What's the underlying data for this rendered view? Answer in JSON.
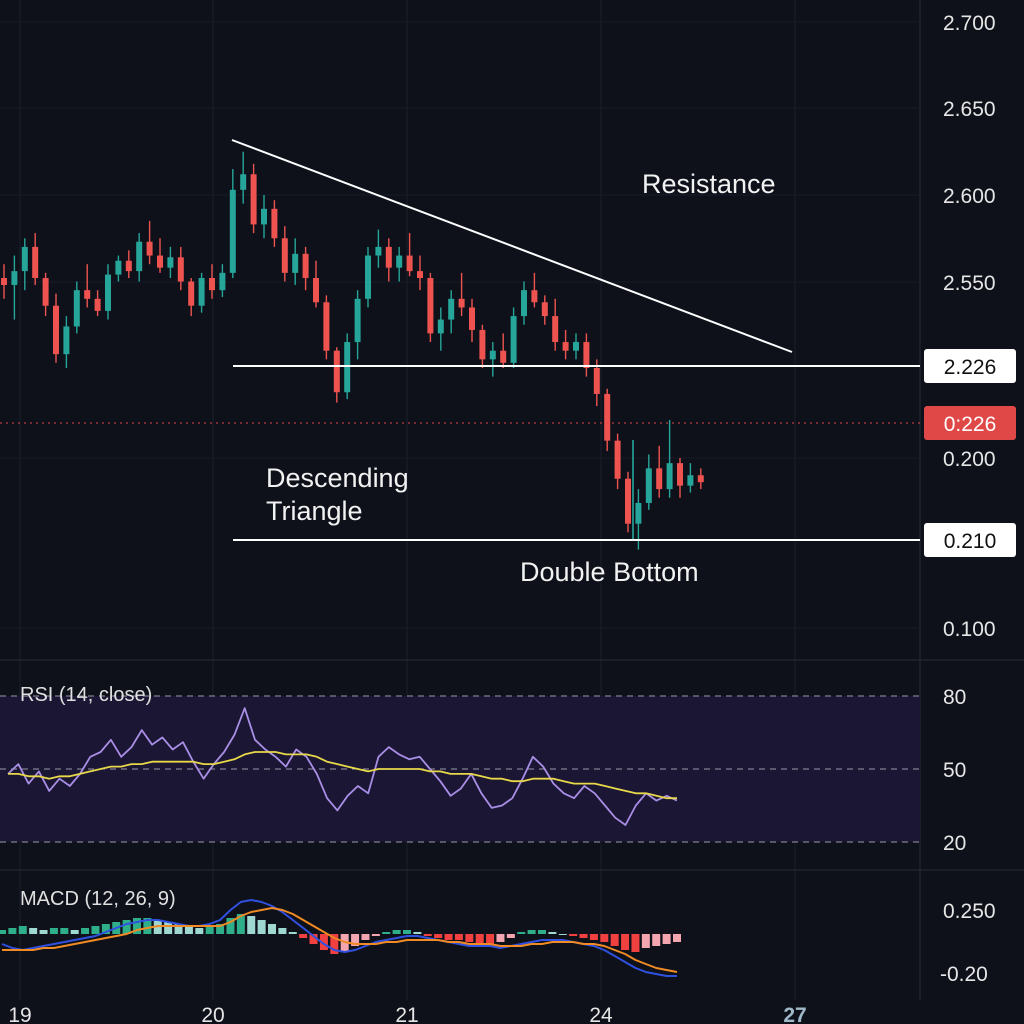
{
  "chart_data": [
    {
      "type": "candlestick",
      "panel": "price",
      "price_axis_ticks": [
        "2.700",
        "2.650",
        "2.600",
        "2.550",
        "0.200",
        "0.100"
      ],
      "price_tags": [
        {
          "label": "2.226",
          "style": "light"
        },
        {
          "label": "0:226",
          "style": "current"
        },
        {
          "label": "0.210",
          "style": "light"
        }
      ],
      "annotations": {
        "resistance": "Resistance",
        "triangle": [
          "Descending",
          "Triangle"
        ],
        "double_bottom": "Double Bottom"
      },
      "x_tick_labels": [
        "19",
        "20",
        "21",
        "24",
        "27"
      ],
      "candles_ohlc": [
        [
          2.552,
          2.56,
          2.54,
          2.548
        ],
        [
          2.548,
          2.565,
          2.528,
          2.556
        ],
        [
          2.556,
          2.575,
          2.545,
          2.57
        ],
        [
          2.57,
          2.578,
          2.548,
          2.552
        ],
        [
          2.552,
          2.555,
          2.53,
          2.536
        ],
        [
          2.536,
          2.543,
          2.503,
          2.508
        ],
        [
          2.508,
          2.53,
          2.5,
          2.524
        ],
        [
          2.524,
          2.55,
          2.52,
          2.545
        ],
        [
          2.545,
          2.56,
          2.535,
          2.54
        ],
        [
          2.54,
          2.545,
          2.53,
          2.533
        ],
        [
          2.533,
          2.56,
          2.528,
          2.554
        ],
        [
          2.554,
          2.565,
          2.55,
          2.562
        ],
        [
          2.562,
          2.568,
          2.552,
          2.556
        ],
        [
          2.556,
          2.578,
          2.55,
          2.573
        ],
        [
          2.573,
          2.585,
          2.56,
          2.565
        ],
        [
          2.565,
          2.575,
          2.555,
          2.558
        ],
        [
          2.558,
          2.57,
          2.552,
          2.564
        ],
        [
          2.564,
          2.57,
          2.545,
          2.55
        ],
        [
          2.55,
          2.552,
          2.53,
          2.536
        ],
        [
          2.536,
          2.555,
          2.532,
          2.552
        ],
        [
          2.552,
          2.56,
          2.54,
          2.545
        ],
        [
          2.545,
          2.56,
          2.541,
          2.555
        ],
        [
          2.555,
          2.615,
          2.552,
          2.603
        ],
        [
          2.603,
          2.625,
          2.595,
          2.612
        ],
        [
          2.612,
          2.618,
          2.578,
          2.583
        ],
        [
          2.583,
          2.6,
          2.575,
          2.592
        ],
        [
          2.592,
          2.597,
          2.57,
          2.575
        ],
        [
          2.575,
          2.582,
          2.55,
          2.555
        ],
        [
          2.555,
          2.575,
          2.548,
          2.566
        ],
        [
          2.566,
          2.57,
          2.545,
          2.552
        ],
        [
          2.552,
          2.562,
          2.535,
          2.538
        ],
        [
          2.538,
          2.542,
          2.505,
          2.51
        ],
        [
          2.51,
          2.512,
          2.48,
          2.486
        ],
        [
          2.486,
          2.52,
          2.482,
          2.515
        ],
        [
          2.515,
          2.545,
          2.505,
          2.54
        ],
        [
          2.54,
          2.57,
          2.535,
          2.565
        ],
        [
          2.565,
          2.58,
          2.558,
          2.57
        ],
        [
          2.57,
          2.575,
          2.55,
          2.558
        ],
        [
          2.558,
          2.57,
          2.55,
          2.565
        ],
        [
          2.565,
          2.578,
          2.553,
          2.556
        ],
        [
          2.556,
          2.565,
          2.545,
          2.552
        ],
        [
          2.552,
          2.555,
          2.515,
          2.52
        ],
        [
          2.52,
          2.535,
          2.51,
          2.528
        ],
        [
          2.528,
          2.545,
          2.52,
          2.54
        ],
        [
          2.54,
          2.555,
          2.53,
          2.535
        ],
        [
          2.535,
          2.54,
          2.515,
          2.522
        ],
        [
          2.522,
          2.525,
          2.5,
          2.505
        ],
        [
          2.505,
          2.515,
          2.495,
          2.51
        ],
        [
          2.51,
          2.52,
          2.5,
          2.503
        ],
        [
          2.503,
          2.535,
          2.5,
          2.53
        ],
        [
          2.53,
          2.55,
          2.525,
          2.545
        ],
        [
          2.545,
          2.555,
          2.535,
          2.538
        ],
        [
          2.538,
          2.542,
          2.525,
          2.53
        ],
        [
          2.53,
          2.54,
          2.51,
          2.515
        ],
        [
          2.515,
          2.522,
          2.505,
          2.51
        ],
        [
          2.51,
          2.52,
          2.505,
          2.515
        ],
        [
          2.515,
          2.52,
          2.495,
          2.5
        ],
        [
          2.5,
          2.505,
          2.478,
          2.485
        ],
        [
          2.485,
          2.488,
          2.452,
          2.458
        ],
        [
          2.458,
          2.462,
          2.43,
          2.436
        ],
        [
          2.436,
          2.44,
          2.405,
          2.41
        ],
        [
          2.41,
          2.43,
          2.395,
          2.422
        ],
        [
          2.422,
          2.45,
          2.418,
          2.442
        ],
        [
          2.442,
          2.455,
          2.425,
          2.43
        ],
        [
          2.43,
          2.47,
          2.425,
          2.445
        ],
        [
          2.445,
          2.448,
          2.425,
          2.432
        ],
        [
          2.432,
          2.445,
          2.428,
          2.438
        ],
        [
          2.438,
          2.442,
          2.43,
          2.434
        ]
      ]
    },
    {
      "type": "line",
      "panel": "rsi",
      "title": "RSI (14, close)",
      "axis_ticks": [
        "80",
        "50",
        "20"
      ],
      "levels": [
        80,
        50,
        20
      ],
      "series": [
        {
          "values": [
            48,
            52,
            44,
            49,
            41,
            46,
            43,
            48,
            55,
            57,
            62,
            55,
            59,
            66,
            60,
            63,
            58,
            61,
            53,
            46,
            52,
            57,
            64,
            75,
            62,
            58,
            55,
            51,
            58,
            55,
            48,
            38,
            33,
            39,
            43,
            40,
            55,
            59,
            56,
            54,
            55,
            50,
            45,
            39,
            42,
            48,
            40,
            34,
            35,
            38,
            46,
            55,
            51,
            44,
            40,
            38,
            43,
            40,
            35,
            30,
            27,
            35,
            40,
            37,
            39,
            37
          ]
        },
        {
          "values": [
            48,
            48,
            47,
            47,
            46,
            47,
            47,
            48,
            49,
            50,
            51,
            51,
            52,
            52,
            53,
            53,
            53,
            53,
            53,
            52,
            52,
            53,
            54,
            56,
            57,
            57,
            57,
            56,
            56,
            56,
            55,
            53,
            52,
            51,
            50,
            49,
            50,
            50,
            50,
            50,
            50,
            49,
            49,
            48,
            48,
            48,
            47,
            46,
            46,
            45,
            45,
            46,
            46,
            46,
            45,
            44,
            44,
            44,
            43,
            42,
            41,
            40,
            40,
            39,
            38,
            38
          ]
        }
      ],
      "colors": [
        "#a98ee6",
        "#e8d84a"
      ]
    },
    {
      "type": "bar+line",
      "panel": "macd",
      "title": "MACD (12, 26, 9)",
      "axis_ticks": [
        "0.250",
        "-0.20"
      ],
      "histogram": [
        0.02,
        0.03,
        0.04,
        0.03,
        0.02,
        0.03,
        0.03,
        0.02,
        0.03,
        0.04,
        0.05,
        0.06,
        0.07,
        0.08,
        0.08,
        0.07,
        0.06,
        0.05,
        0.04,
        0.03,
        0.04,
        0.05,
        0.08,
        0.1,
        0.09,
        0.07,
        0.05,
        0.03,
        0.01,
        -0.02,
        -0.05,
        -0.08,
        -0.1,
        -0.09,
        -0.06,
        -0.03,
        -0.01,
        0.01,
        0.02,
        0.02,
        0.01,
        -0.01,
        -0.02,
        -0.03,
        -0.03,
        -0.04,
        -0.05,
        -0.05,
        -0.04,
        -0.02,
        0.01,
        0.02,
        0.02,
        0.01,
        0.0,
        -0.01,
        -0.02,
        -0.03,
        -0.04,
        -0.06,
        -0.08,
        -0.09,
        -0.07,
        -0.06,
        -0.05,
        -0.04
      ],
      "series": [
        {
          "values": [
            -0.05,
            -0.07,
            -0.08,
            -0.07,
            -0.06,
            -0.05,
            -0.04,
            -0.03,
            -0.02,
            -0.01,
            0.01,
            0.03,
            0.05,
            0.06,
            0.07,
            0.07,
            0.06,
            0.05,
            0.04,
            0.04,
            0.05,
            0.07,
            0.12,
            0.16,
            0.17,
            0.16,
            0.14,
            0.11,
            0.07,
            0.03,
            -0.01,
            -0.05,
            -0.08,
            -0.09,
            -0.08,
            -0.06,
            -0.04,
            -0.03,
            -0.02,
            -0.01,
            -0.01,
            -0.02,
            -0.03,
            -0.04,
            -0.05,
            -0.06,
            -0.06,
            -0.06,
            -0.07,
            -0.06,
            -0.05,
            -0.04,
            -0.03,
            -0.03,
            -0.03,
            -0.04,
            -0.05,
            -0.06,
            -0.08,
            -0.11,
            -0.14,
            -0.17,
            -0.19,
            -0.2,
            -0.21,
            -0.21
          ]
        },
        {
          "values": [
            -0.08,
            -0.08,
            -0.08,
            -0.08,
            -0.07,
            -0.07,
            -0.06,
            -0.05,
            -0.04,
            -0.03,
            -0.02,
            -0.01,
            0.0,
            0.02,
            0.03,
            0.04,
            0.04,
            0.04,
            0.04,
            0.04,
            0.04,
            0.04,
            0.06,
            0.09,
            0.11,
            0.12,
            0.13,
            0.12,
            0.1,
            0.07,
            0.04,
            0.01,
            -0.02,
            -0.04,
            -0.05,
            -0.05,
            -0.05,
            -0.04,
            -0.04,
            -0.03,
            -0.03,
            -0.03,
            -0.03,
            -0.04,
            -0.04,
            -0.05,
            -0.05,
            -0.05,
            -0.06,
            -0.06,
            -0.06,
            -0.05,
            -0.05,
            -0.04,
            -0.04,
            -0.04,
            -0.05,
            -0.05,
            -0.06,
            -0.08,
            -0.1,
            -0.13,
            -0.15,
            -0.17,
            -0.18,
            -0.19
          ]
        }
      ],
      "colors": [
        "#3050e0",
        "#f08a24",
        "#2fae8a",
        "#9fd8d0",
        "#f04040",
        "#f4a6b0"
      ]
    }
  ],
  "colors": {
    "background": "#0e111a",
    "bull": "#26a69a",
    "bear": "#ef5350",
    "current_tag": "#e04848",
    "line": "#ffffff"
  }
}
